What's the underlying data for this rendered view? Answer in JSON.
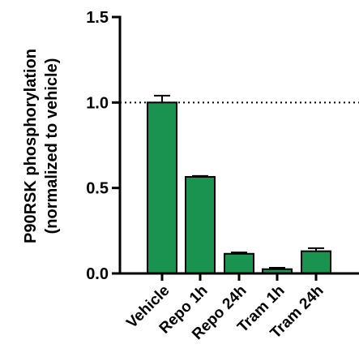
{
  "chart_data": {
    "type": "bar",
    "title": "",
    "ylabel_line1": "P90RSK phosphorylation",
    "ylabel_line2": "(normalized to vehicle)",
    "xlabel": "",
    "ylim": [
      0,
      1.5
    ],
    "yticks": [
      "0.0",
      "0.5",
      "1.0",
      "1.5"
    ],
    "ytick_values": [
      0,
      0.5,
      1.0,
      1.5
    ],
    "categories": [
      "Vehicle",
      "Repo 1h",
      "Repo 24h",
      "Tram 1h",
      "Tram 24h"
    ],
    "values": [
      1.0,
      0.565,
      0.115,
      0.025,
      0.13
    ],
    "errors": [
      0.04,
      0.005,
      0.008,
      0.008,
      0.018
    ],
    "reference_line": 1.0,
    "bar_color": "#1a9350",
    "grid": false,
    "legend": "none"
  }
}
